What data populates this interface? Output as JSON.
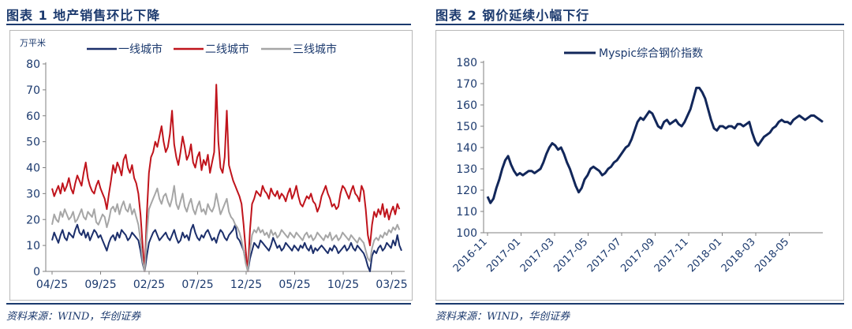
{
  "figures": [
    {
      "title": "图表 1   地产销售环比下降",
      "source": "资料来源：WIND，华创证券"
    },
    {
      "title": "图表 2   钢价延续小幅下行",
      "source": "资料来源：WIND，华创证券"
    }
  ],
  "chart_data": [
    {
      "type": "line",
      "unit_label": "万平米",
      "ylim": [
        0,
        80
      ],
      "yticks": [
        0,
        10,
        20,
        30,
        40,
        50,
        60,
        70,
        80
      ],
      "xticks": [
        "04/25",
        "09/25",
        "02/25",
        "07/25",
        "12/25",
        "05/25",
        "10/25",
        "03/25"
      ],
      "legend": "top",
      "grid": false,
      "series": [
        {
          "name": "一线城市",
          "color": "#1c2f6b",
          "values": [
            12,
            15,
            13,
            11,
            14,
            16,
            13,
            12,
            15,
            14,
            13,
            16,
            18,
            15,
            14,
            16,
            13,
            15,
            12,
            14,
            16,
            15,
            13,
            14,
            12,
            10,
            8,
            11,
            13,
            14,
            12,
            15,
            13,
            16,
            15,
            14,
            12,
            13,
            15,
            14,
            13,
            12,
            8,
            3,
            0,
            6,
            11,
            13,
            15,
            16,
            14,
            12,
            13,
            14,
            15,
            13,
            12,
            14,
            16,
            13,
            11,
            12,
            15,
            13,
            14,
            12,
            16,
            18,
            15,
            13,
            12,
            14,
            13,
            15,
            16,
            14,
            12,
            13,
            11,
            14,
            16,
            15,
            13,
            12,
            14,
            15,
            16,
            18,
            13,
            12,
            10,
            8,
            4,
            0,
            5,
            8,
            11,
            10,
            9,
            12,
            11,
            10,
            9,
            8,
            10,
            13,
            11,
            9,
            10,
            8,
            9,
            11,
            10,
            9,
            8,
            10,
            9,
            8,
            10,
            9,
            11,
            9,
            8,
            10,
            7,
            9,
            8,
            9,
            10,
            9,
            8,
            7,
            9,
            8,
            10,
            9,
            7,
            8,
            9,
            10,
            8,
            9,
            11,
            9,
            8,
            10,
            9,
            8,
            7,
            5,
            2,
            0,
            6,
            8,
            7,
            9,
            10,
            8,
            9,
            11,
            10,
            9,
            12,
            10,
            14,
            10,
            8
          ]
        },
        {
          "name": "二线城市",
          "color": "#c0141c",
          "values": [
            32,
            29,
            31,
            33,
            30,
            34,
            31,
            33,
            36,
            32,
            30,
            34,
            37,
            35,
            33,
            38,
            42,
            36,
            33,
            31,
            30,
            33,
            35,
            32,
            30,
            28,
            24,
            30,
            35,
            41,
            38,
            42,
            40,
            37,
            43,
            45,
            40,
            38,
            41,
            36,
            34,
            30,
            22,
            10,
            0,
            22,
            38,
            44,
            46,
            50,
            48,
            52,
            56,
            50,
            46,
            48,
            53,
            62,
            49,
            44,
            41,
            46,
            52,
            48,
            43,
            45,
            49,
            42,
            40,
            44,
            46,
            39,
            43,
            41,
            45,
            38,
            42,
            46,
            72,
            50,
            40,
            38,
            44,
            62,
            41,
            38,
            35,
            33,
            31,
            29,
            26,
            18,
            8,
            0,
            16,
            26,
            28,
            31,
            30,
            29,
            33,
            31,
            30,
            28,
            32,
            30,
            29,
            31,
            28,
            30,
            29,
            27,
            30,
            32,
            28,
            30,
            33,
            29,
            26,
            25,
            27,
            29,
            28,
            30,
            27,
            26,
            23,
            25,
            29,
            31,
            33,
            30,
            28,
            25,
            26,
            24,
            25,
            30,
            33,
            32,
            30,
            28,
            31,
            33,
            30,
            29,
            27,
            33,
            31,
            24,
            14,
            10,
            18,
            23,
            21,
            24,
            22,
            26,
            21,
            24,
            20,
            23,
            25,
            22,
            26,
            24
          ]
        },
        {
          "name": "三线城市",
          "color": "#a6a6a6",
          "values": [
            18,
            22,
            20,
            19,
            23,
            21,
            24,
            22,
            20,
            21,
            23,
            19,
            20,
            22,
            24,
            21,
            20,
            23,
            22,
            21,
            24,
            19,
            18,
            20,
            22,
            21,
            17,
            20,
            24,
            25,
            23,
            26,
            22,
            25,
            27,
            24,
            23,
            26,
            22,
            24,
            21,
            18,
            12,
            4,
            0,
            14,
            24,
            26,
            28,
            30,
            32,
            28,
            26,
            29,
            30,
            27,
            25,
            28,
            33,
            26,
            24,
            27,
            30,
            25,
            23,
            26,
            28,
            24,
            22,
            25,
            27,
            23,
            24,
            22,
            26,
            24,
            23,
            25,
            30,
            26,
            22,
            24,
            26,
            28,
            23,
            21,
            20,
            18,
            17,
            15,
            12,
            8,
            3,
            0,
            8,
            14,
            16,
            15,
            17,
            15,
            16,
            14,
            15,
            13,
            16,
            14,
            15,
            13,
            14,
            16,
            15,
            14,
            13,
            15,
            14,
            13,
            15,
            14,
            13,
            12,
            14,
            15,
            13,
            14,
            12,
            13,
            15,
            14,
            13,
            12,
            14,
            13,
            15,
            12,
            13,
            14,
            12,
            13,
            15,
            14,
            13,
            12,
            14,
            13,
            12,
            11,
            13,
            12,
            11,
            8,
            5,
            4,
            9,
            12,
            13,
            12,
            14,
            13,
            15,
            14,
            16,
            15,
            17,
            16,
            18,
            16
          ]
        }
      ]
    },
    {
      "type": "line",
      "ylim": [
        100,
        180
      ],
      "yticks": [
        100,
        110,
        120,
        130,
        140,
        150,
        160,
        170,
        180
      ],
      "xticks": [
        "2016-11",
        "2017-01",
        "2017-03",
        "2017-05",
        "2017-07",
        "2017-09",
        "2017-11",
        "2018-01",
        "2018-03",
        "2018-05"
      ],
      "legend": "top",
      "grid": false,
      "series": [
        {
          "name": "Myspic综合钢价指数",
          "color": "#12275a",
          "values": [
            117,
            114,
            116,
            121,
            125,
            130,
            134,
            136,
            132,
            129,
            127,
            128,
            127,
            128,
            129,
            129,
            128,
            129,
            130,
            133,
            137,
            140,
            142,
            141,
            139,
            140,
            137,
            133,
            130,
            126,
            122,
            119,
            121,
            125,
            127,
            130,
            131,
            130,
            129,
            127,
            128,
            130,
            131,
            133,
            134,
            136,
            138,
            140,
            141,
            144,
            148,
            152,
            154,
            153,
            155,
            157,
            156,
            153,
            150,
            149,
            152,
            153,
            151,
            152,
            153,
            151,
            150,
            152,
            155,
            158,
            163,
            168,
            168,
            166,
            163,
            158,
            153,
            149,
            148,
            150,
            150,
            149,
            150,
            150,
            149,
            151,
            151,
            150,
            151,
            152,
            147,
            143,
            141,
            143,
            145,
            146,
            147,
            149,
            150,
            152,
            153,
            152,
            152,
            151,
            153,
            154,
            155,
            154,
            153,
            154,
            155,
            155,
            154,
            153,
            152
          ]
        }
      ]
    }
  ]
}
